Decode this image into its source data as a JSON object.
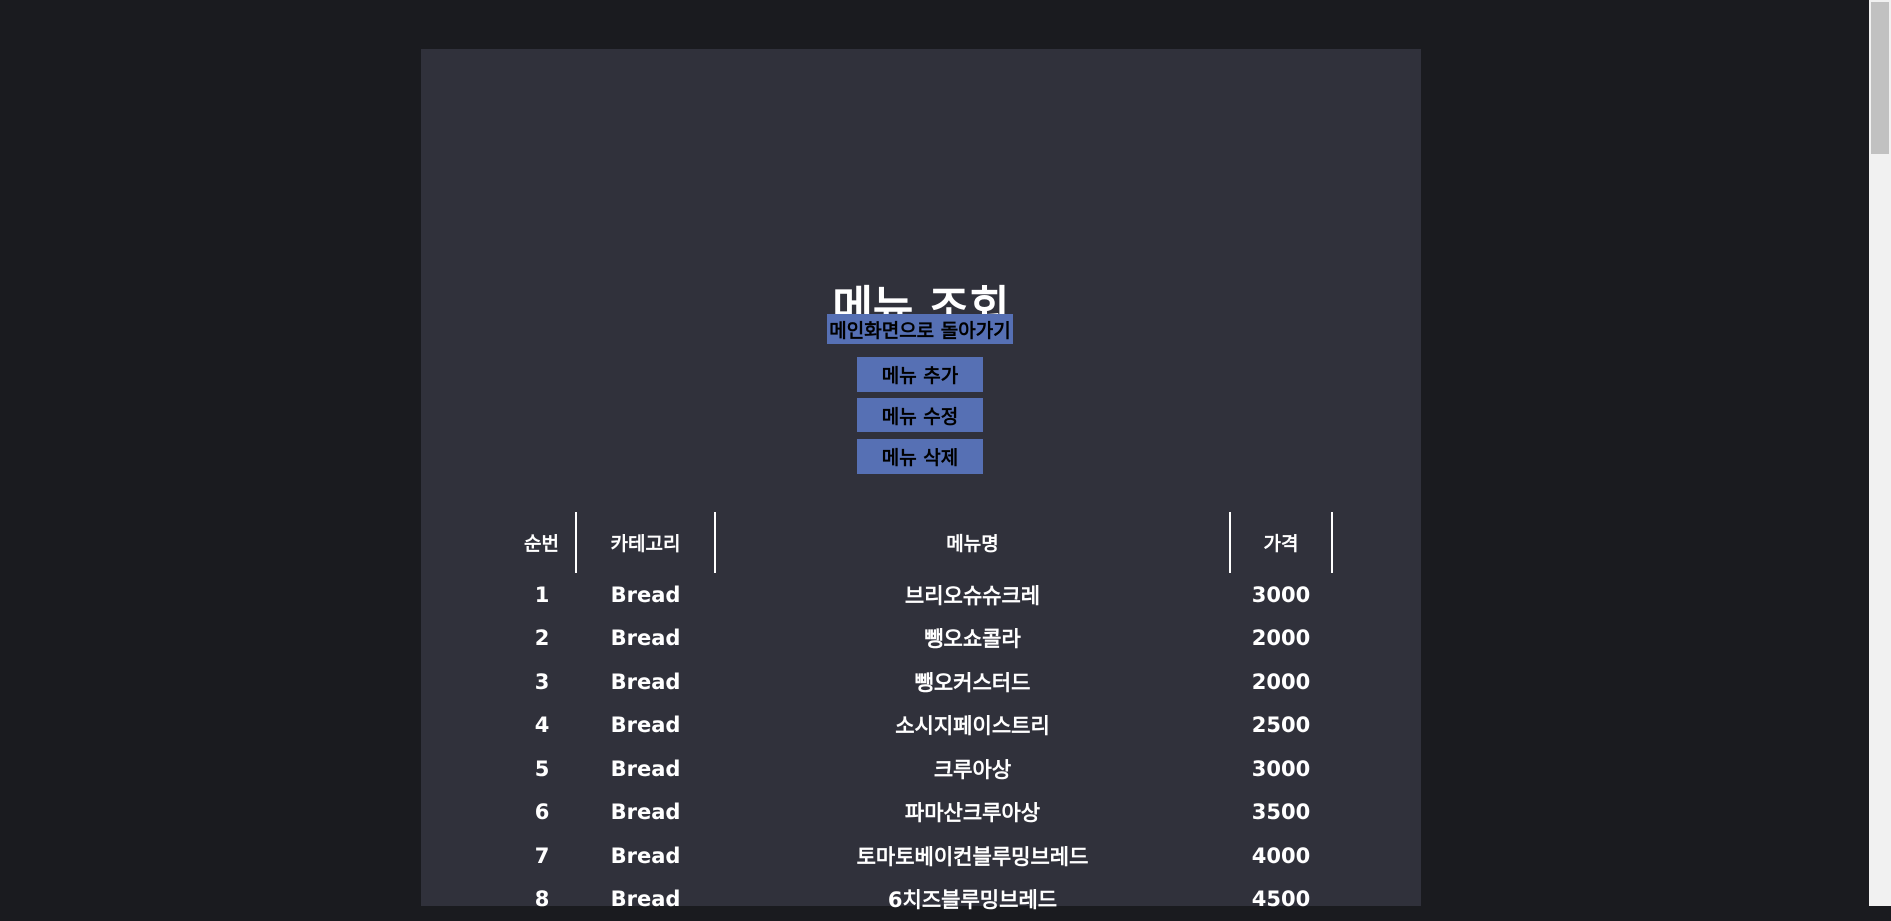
{
  "header": {
    "title": "메뉴 조회"
  },
  "buttons": [
    "메인화면으로 돌아가기",
    "메뉴 추가",
    "메뉴 수정",
    "메뉴 삭제"
  ],
  "table": {
    "columns": [
      "순번",
      "카테고리",
      "메뉴명",
      "가격"
    ],
    "rows": [
      [
        "1",
        "Bread",
        "브리오슈슈크레",
        "3000"
      ],
      [
        "2",
        "Bread",
        "뺑오쇼콜라",
        "2000"
      ],
      [
        "3",
        "Bread",
        "뺑오커스터드",
        "2000"
      ],
      [
        "4",
        "Bread",
        "소시지페이스트리",
        "2500"
      ],
      [
        "5",
        "Bread",
        "크루아상",
        "3000"
      ],
      [
        "6",
        "Bread",
        "파마산크루아상",
        "3500"
      ],
      [
        "7",
        "Bread",
        "토마토베이컨블루밍브레드",
        "4000"
      ],
      [
        "8",
        "Bread",
        "6치즈블루밍브레드",
        "4500"
      ]
    ]
  }
}
